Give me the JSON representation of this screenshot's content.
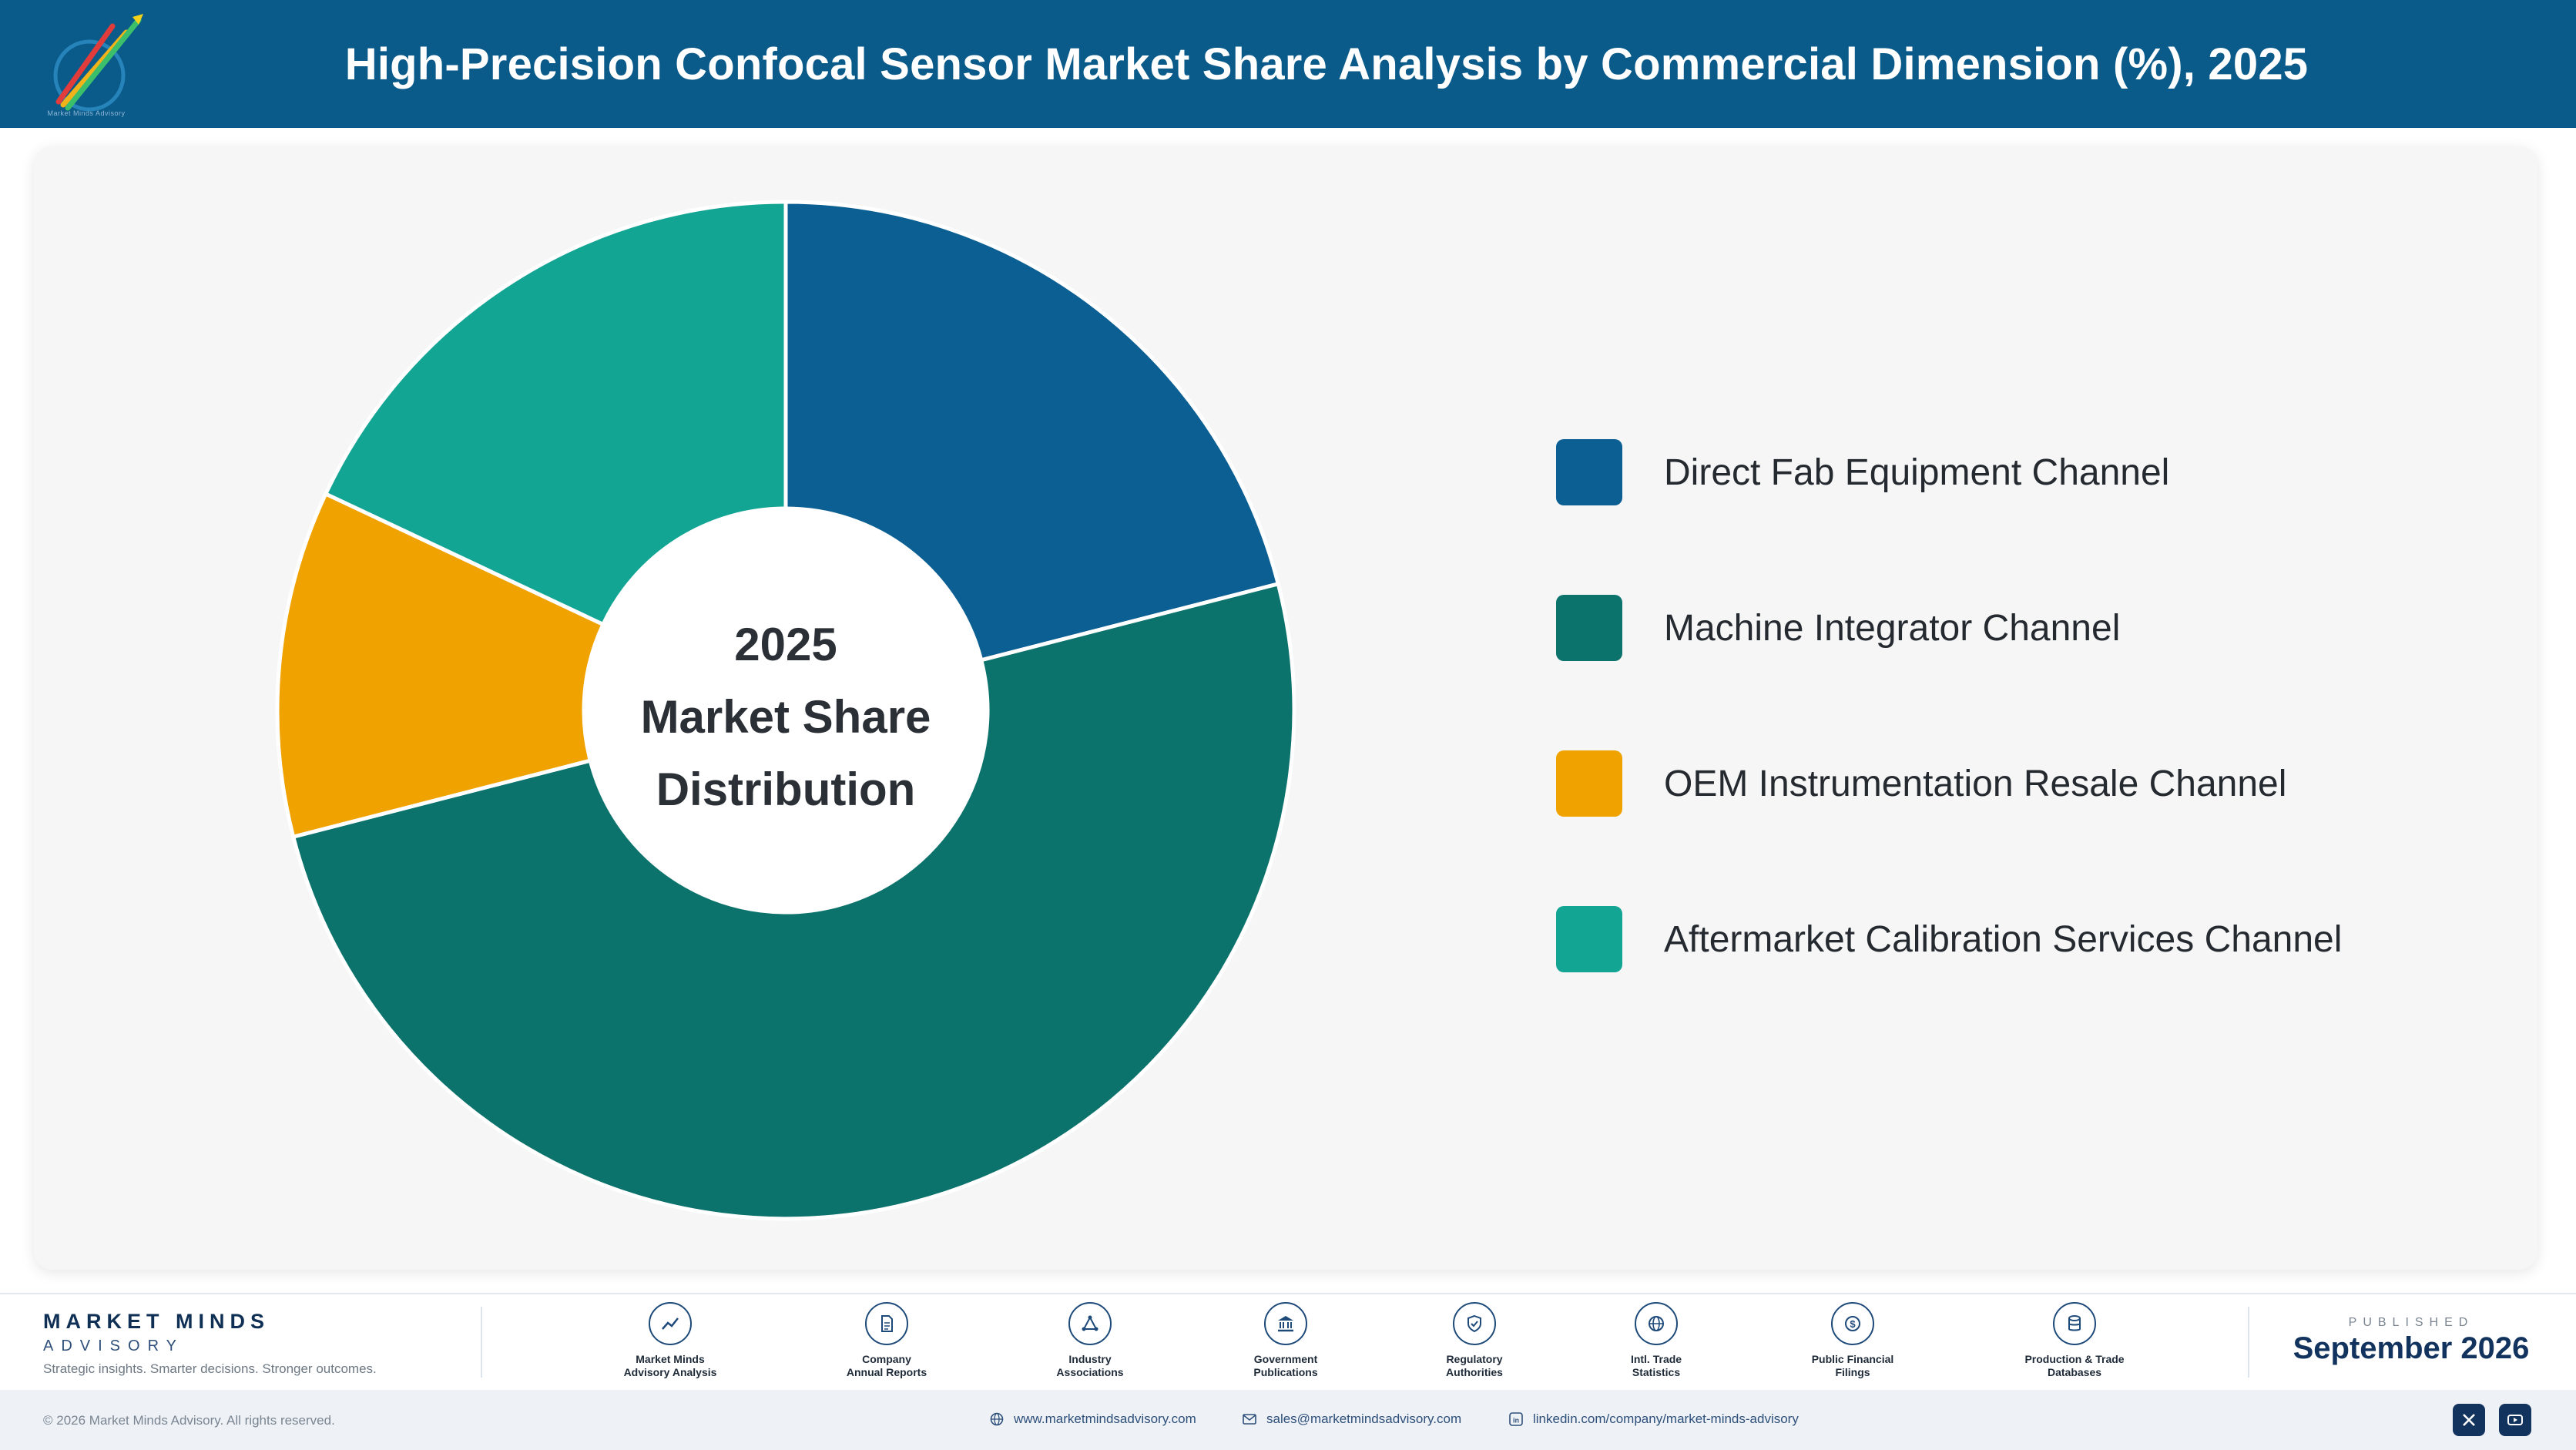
{
  "header": {
    "title": "High-Precision Confocal Sensor Market Share Analysis by Commercial Dimension (%), 2025",
    "logo_icon": "market-minds-logo-icon"
  },
  "chart_data": {
    "type": "pie",
    "title": "High-Precision Confocal Sensor Market Share Analysis by Commercial Dimension (%), 2025",
    "center_label": [
      "2025",
      "Market Share",
      "Distribution"
    ],
    "legend_position": "right",
    "series": [
      {
        "name": "Direct Fab Equipment Channel",
        "value": 21,
        "color": "#0b5f93"
      },
      {
        "name": "Machine Integrator Channel",
        "value": 50,
        "color": "#0c736c"
      },
      {
        "name": "OEM Instrumentation Resale Channel",
        "value": 11,
        "color": "#f0a300"
      },
      {
        "name": "Aftermarket Calibration Services Channel",
        "value": 18,
        "color": "#12a594"
      }
    ]
  },
  "footer": {
    "brand_name": "MARKET MINDS",
    "brand_sub": "ADVISORY",
    "tagline": "Strategic insights. Smarter decisions. Stronger outcomes.",
    "sources": [
      {
        "label": "Market Minds\nAdvisory Analysis",
        "icon": "trend-chart-icon"
      },
      {
        "label": "Company\nAnnual Reports",
        "icon": "document-icon"
      },
      {
        "label": "Industry\nAssociations",
        "icon": "network-icon"
      },
      {
        "label": "Government\nPublications",
        "icon": "government-building-icon"
      },
      {
        "label": "Regulatory\nAuthorities",
        "icon": "shield-check-icon"
      },
      {
        "label": "Intl. Trade\nStatistics",
        "icon": "globe-icon"
      },
      {
        "label": "Public Financial\nFilings",
        "icon": "dollar-coin-icon"
      },
      {
        "label": "Production & Trade\nDatabases",
        "icon": "database-icon"
      }
    ],
    "published_label": "PUBLISHED",
    "published_date": "September 2026",
    "copyright": "© 2026 Market Minds Advisory. All rights reserved.",
    "website": "www.marketmindsadvisory.com",
    "email": "sales@marketmindsadvisory.com",
    "linkedin": "linkedin.com/company/market-minds-advisory"
  }
}
